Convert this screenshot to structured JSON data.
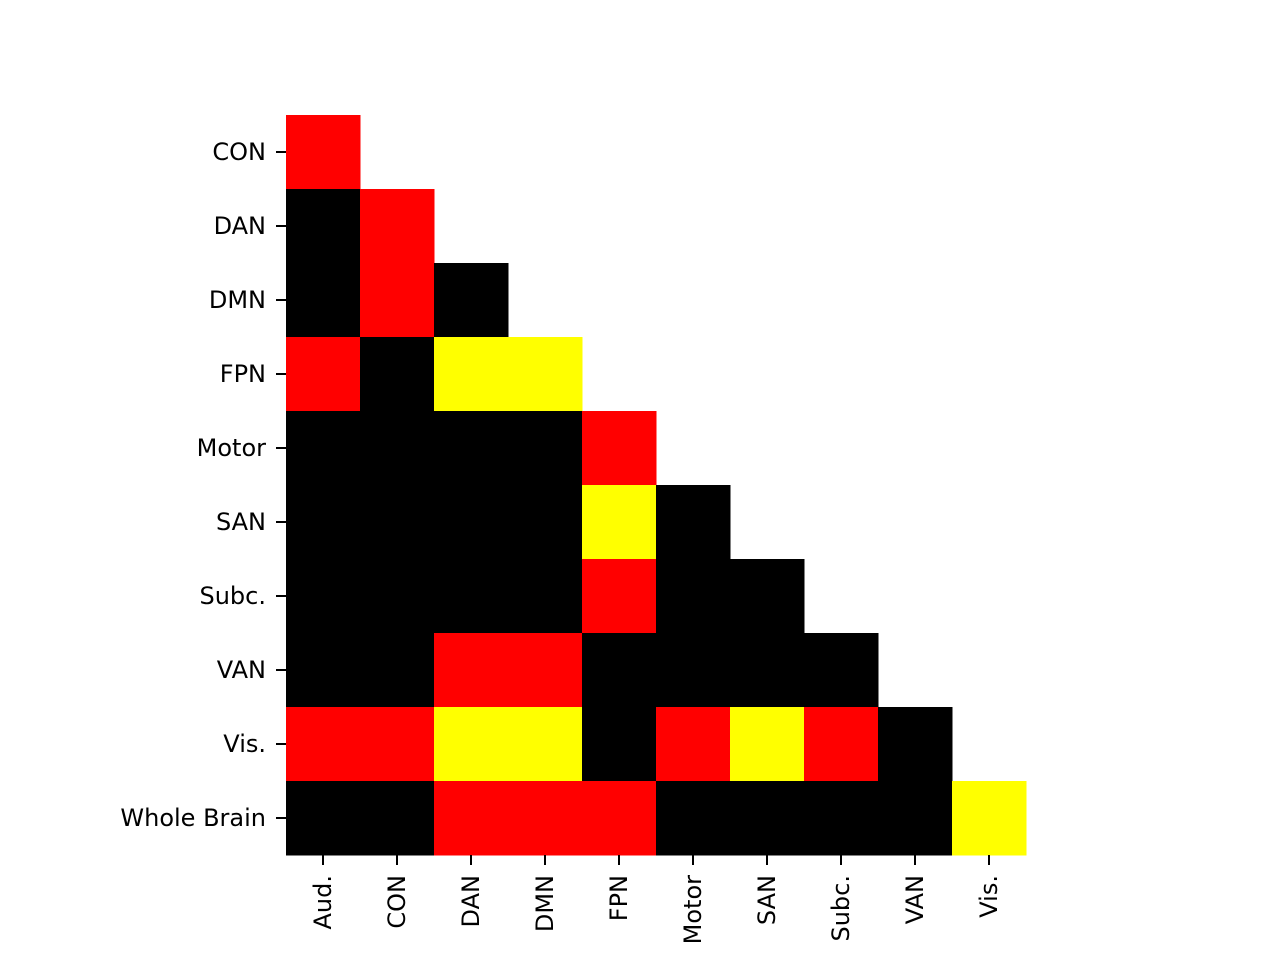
{
  "chart_data": {
    "type": "heatmap",
    "title": "",
    "xlabel": "",
    "ylabel": "",
    "x_categories": [
      "Aud.",
      "CON",
      "DAN",
      "DMN",
      "FPN",
      "Motor",
      "SAN",
      "Subc.",
      "VAN",
      "Vis."
    ],
    "y_categories": [
      "CON",
      "DAN",
      "DMN",
      "FPN",
      "Motor",
      "SAN",
      "Subc.",
      "VAN",
      "Vis.",
      "Whole Brain"
    ],
    "color_levels": {
      "0": "#000000",
      "1": "#ff0000",
      "2": "#ffff00"
    },
    "values": [
      [
        1,
        null,
        null,
        null,
        null,
        null,
        null,
        null,
        null,
        null
      ],
      [
        0,
        1,
        null,
        null,
        null,
        null,
        null,
        null,
        null,
        null
      ],
      [
        0,
        1,
        0,
        null,
        null,
        null,
        null,
        null,
        null,
        null
      ],
      [
        1,
        0,
        2,
        2,
        null,
        null,
        null,
        null,
        null,
        null
      ],
      [
        0,
        0,
        0,
        0,
        1,
        null,
        null,
        null,
        null,
        null
      ],
      [
        0,
        0,
        0,
        0,
        2,
        0,
        null,
        null,
        null,
        null
      ],
      [
        0,
        0,
        0,
        0,
        1,
        0,
        0,
        null,
        null,
        null
      ],
      [
        0,
        0,
        1,
        1,
        0,
        0,
        0,
        0,
        null,
        null
      ],
      [
        1,
        1,
        2,
        2,
        0,
        1,
        2,
        1,
        0,
        null
      ],
      [
        0,
        0,
        1,
        1,
        1,
        0,
        0,
        0,
        0,
        2
      ]
    ],
    "grid": false,
    "legend": "none"
  }
}
